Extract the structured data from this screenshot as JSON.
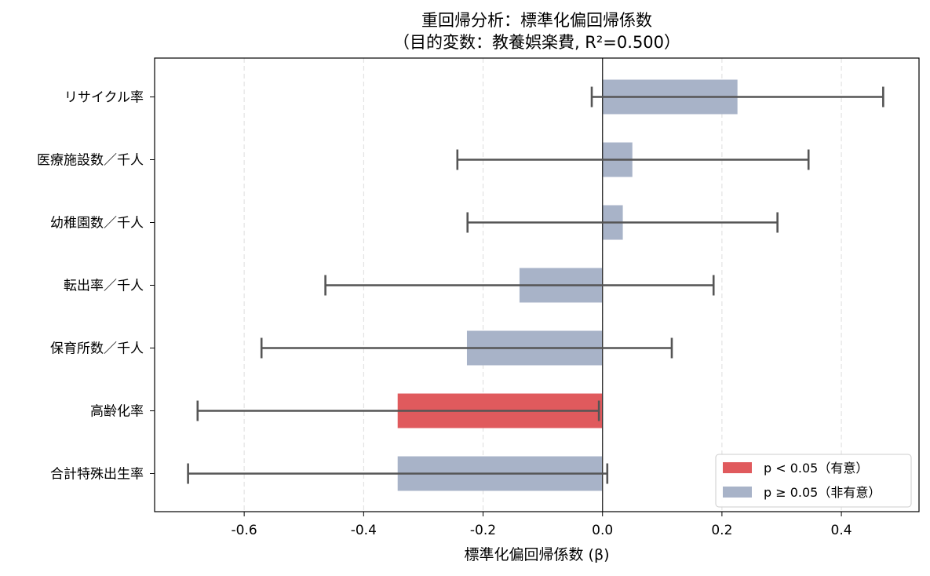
{
  "chart_data": {
    "type": "bar",
    "orientation": "horizontal",
    "title": "重回帰分析：標準化偏回帰係数",
    "subtitle": "（目的変数：教養娯楽費, R²=0.500）",
    "xlabel": "標準化偏回帰係数 (β)",
    "ylabel": "",
    "xlim": [
      -0.75,
      0.53
    ],
    "xticks": [
      -0.6,
      -0.4,
      -0.2,
      0.0,
      0.2,
      0.4
    ],
    "xtick_labels": [
      "-0.6",
      "-0.4",
      "-0.2",
      "0.0",
      "0.2",
      "0.4"
    ],
    "grid": "x-dashed",
    "zero_line": 0.0,
    "categories": [
      "リサイクル率",
      "医療施設数／千人",
      "幼稚園数／千人",
      "転出率／千人",
      "保育所数／千人",
      "高齢化率",
      "合計特殊出生率"
    ],
    "values": [
      0.226,
      0.05,
      0.034,
      -0.139,
      -0.227,
      -0.343,
      -0.343
    ],
    "ci_low": [
      -0.018,
      -0.243,
      -0.226,
      -0.464,
      -0.571,
      -0.678,
      -0.694
    ],
    "ci_high": [
      0.47,
      0.345,
      0.293,
      0.186,
      0.116,
      -0.006,
      0.008
    ],
    "significant": [
      false,
      false,
      false,
      false,
      false,
      true,
      false
    ],
    "colors": {
      "significant": "#e05a5d",
      "not_significant": "#a8b3c8",
      "errorbar": "#555555",
      "zero_line": "#333333",
      "grid": "#dddddd"
    },
    "legend": {
      "position": "lower-right",
      "entries": [
        {
          "label": "p < 0.05（有意）",
          "color": "#e05a5d"
        },
        {
          "label": "p ≥ 0.05（非有意）",
          "color": "#a8b3c8"
        }
      ]
    }
  }
}
